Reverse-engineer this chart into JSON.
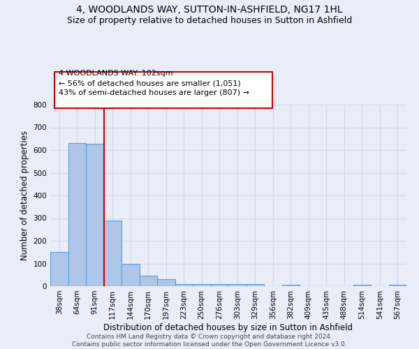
{
  "title": "4, WOODLANDS WAY, SUTTON-IN-ASHFIELD, NG17 1HL",
  "subtitle": "Size of property relative to detached houses in Sutton in Ashfield",
  "xlabel": "Distribution of detached houses by size in Sutton in Ashfield",
  "ylabel": "Number of detached properties",
  "categories": [
    "38sqm",
    "64sqm",
    "91sqm",
    "117sqm",
    "144sqm",
    "170sqm",
    "197sqm",
    "223sqm",
    "250sqm",
    "276sqm",
    "303sqm",
    "329sqm",
    "356sqm",
    "382sqm",
    "409sqm",
    "435sqm",
    "488sqm",
    "514sqm",
    "541sqm",
    "567sqm"
  ],
  "values": [
    150,
    632,
    628,
    290,
    100,
    45,
    30,
    10,
    10,
    10,
    8,
    8,
    0,
    5,
    0,
    0,
    0,
    5,
    0,
    5
  ],
  "bar_color": "#aec6e8",
  "bar_edge_color": "#5a9fd4",
  "red_line_x": 2.5,
  "annotation_text": "4 WOODLANDS WAY: 102sqm\n← 56% of detached houses are smaller (1,051)\n43% of semi-detached houses are larger (807) →",
  "annotation_box_color": "#ffffff",
  "annotation_box_edge": "#cc0000",
  "annotation_text_color": "#000000",
  "ylim": [
    0,
    800
  ],
  "yticks": [
    0,
    100,
    200,
    300,
    400,
    500,
    600,
    700,
    800
  ],
  "grid_color": "#d0d8e8",
  "background_color": "#e8edf8",
  "footer_text": "Contains HM Land Registry data © Crown copyright and database right 2024.\nContains public sector information licensed under the Open Government Licence v3.0.",
  "title_fontsize": 10,
  "subtitle_fontsize": 9,
  "xlabel_fontsize": 8.5,
  "ylabel_fontsize": 8.5,
  "tick_fontsize": 7.5,
  "annotation_fontsize": 8,
  "footer_fontsize": 6.5
}
